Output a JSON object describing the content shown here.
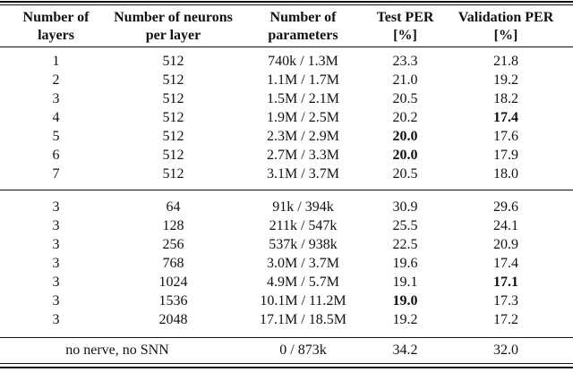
{
  "colors": {
    "background": "#ffffff",
    "text": "#111111",
    "rule": "#111111"
  },
  "table": {
    "columns": [
      {
        "line1": "Number of",
        "line2": "layers"
      },
      {
        "line1": "Number of neurons",
        "line2": "per layer"
      },
      {
        "line1": "Number of",
        "line2": "parameters"
      },
      {
        "line1": "Test PER",
        "line2": "[%]"
      },
      {
        "line1": "Validation PER",
        "line2": "[%]"
      }
    ],
    "groups": [
      {
        "rows": [
          {
            "cells": [
              "1",
              "512",
              "740k / 1.3M",
              "23.3",
              "21.8"
            ],
            "bold": []
          },
          {
            "cells": [
              "2",
              "512",
              "1.1M / 1.7M",
              "21.0",
              "19.2"
            ],
            "bold": []
          },
          {
            "cells": [
              "3",
              "512",
              "1.5M / 2.1M",
              "20.5",
              "18.2"
            ],
            "bold": []
          },
          {
            "cells": [
              "4",
              "512",
              "1.9M / 2.5M",
              "20.2",
              "17.4"
            ],
            "bold": [
              4
            ]
          },
          {
            "cells": [
              "5",
              "512",
              "2.3M / 2.9M",
              "20.0",
              "17.6"
            ],
            "bold": [
              3
            ]
          },
          {
            "cells": [
              "6",
              "512",
              "2.7M / 3.3M",
              "20.0",
              "17.9"
            ],
            "bold": [
              3
            ]
          },
          {
            "cells": [
              "7",
              "512",
              "3.1M / 3.7M",
              "20.5",
              "18.0"
            ],
            "bold": []
          }
        ]
      },
      {
        "rows": [
          {
            "cells": [
              "3",
              "64",
              "91k / 394k",
              "30.9",
              "29.6"
            ],
            "bold": []
          },
          {
            "cells": [
              "3",
              "128",
              "211k / 547k",
              "25.5",
              "24.1"
            ],
            "bold": []
          },
          {
            "cells": [
              "3",
              "256",
              "537k / 938k",
              "22.5",
              "20.9"
            ],
            "bold": []
          },
          {
            "cells": [
              "3",
              "768",
              "3.0M / 3.7M",
              "19.6",
              "17.4"
            ],
            "bold": []
          },
          {
            "cells": [
              "3",
              "1024",
              "4.9M / 5.7M",
              "19.1",
              "17.1"
            ],
            "bold": [
              4
            ]
          },
          {
            "cells": [
              "3",
              "1536",
              "10.1M / 11.2M",
              "19.0",
              "17.3"
            ],
            "bold": [
              3
            ]
          },
          {
            "cells": [
              "3",
              "2048",
              "17.1M / 18.5M",
              "19.2",
              "17.2"
            ],
            "bold": []
          }
        ]
      }
    ],
    "footer": {
      "label": "no nerve, no SNN",
      "cells": [
        "0 / 873k",
        "34.2",
        "32.0"
      ],
      "bold": []
    }
  }
}
